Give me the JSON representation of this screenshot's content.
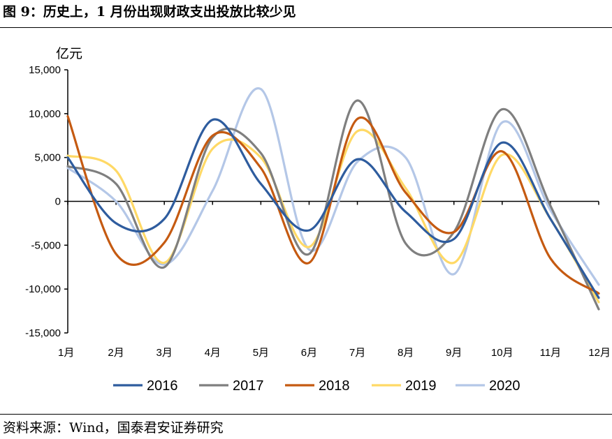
{
  "title": "图 9：历史上，1 月份出现财政支出投放比较少见",
  "source": "资料来源：Wind，国泰君安证券研究",
  "chart_data": {
    "type": "line",
    "ylabel": "亿元",
    "ylim": [
      -15000,
      15000
    ],
    "yticks": [
      15000,
      10000,
      5000,
      0,
      -5000,
      -10000,
      -15000
    ],
    "ytick_labels": [
      "15,000",
      "10,000",
      "5,000",
      "0",
      "-5,000",
      "-10,000",
      "-15,000"
    ],
    "categories": [
      "1月",
      "2月",
      "3月",
      "4月",
      "5月",
      "6月",
      "7月",
      "8月",
      "9月",
      "10月",
      "11月",
      "12月"
    ],
    "legend_position": "bottom",
    "series": [
      {
        "name": "2016",
        "color": "#2E5C9E",
        "values": [
          5000,
          -2500,
          -2000,
          9300,
          2000,
          -3300,
          4800,
          -1200,
          -4300,
          6700,
          -2000,
          -11000
        ]
      },
      {
        "name": "2017",
        "color": "#7F7F7F",
        "values": [
          4000,
          2000,
          -7500,
          7300,
          5500,
          -6000,
          11500,
          -4800,
          -3500,
          10500,
          -500,
          -12300
        ]
      },
      {
        "name": "2018",
        "color": "#C55A11",
        "values": [
          9700,
          -6000,
          -4700,
          7500,
          3800,
          -7000,
          9400,
          1000,
          -3500,
          5700,
          -6500,
          -10500
        ]
      },
      {
        "name": "2019",
        "color": "#FFD966",
        "values": [
          5200,
          3500,
          -7000,
          6000,
          5000,
          -5200,
          8000,
          1500,
          -7000,
          5300,
          -2000,
          -11500
        ]
      },
      {
        "name": "2020",
        "color": "#B4C7E7",
        "values": [
          3800,
          0,
          -7200,
          1200,
          12800,
          -5500,
          4500,
          5000,
          -8300,
          9000,
          -1000,
          -9500
        ]
      }
    ]
  }
}
